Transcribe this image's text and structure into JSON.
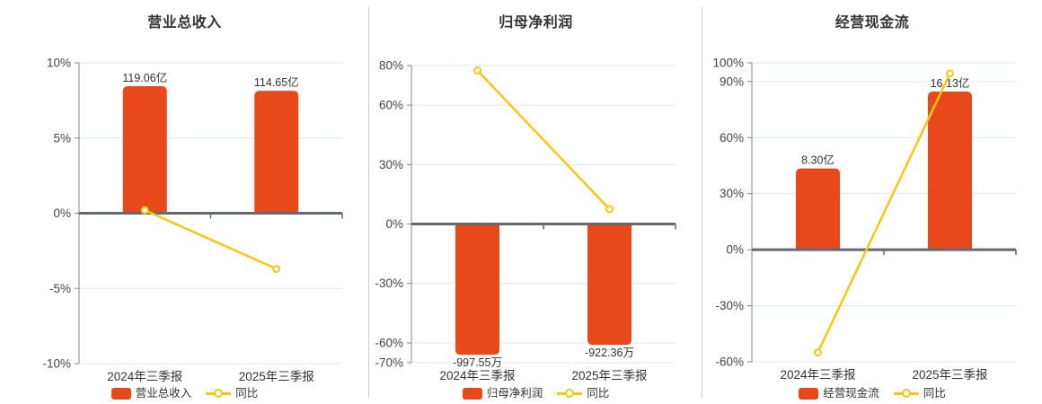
{
  "colors": {
    "bar": "#e8491a",
    "line": "#f5c813",
    "marker_fill": "#ffffff",
    "grid": "#e0e7f2",
    "zero_axis": "#65686f",
    "y_axis": "#7f838b",
    "title_text": "#333333",
    "tick_text": "#444444",
    "label_text": "#333333",
    "divider": "#cccccc",
    "background": "#ffffff"
  },
  "chart_data": [
    {
      "id": "revenue",
      "type": "bar",
      "title": "营业总收入",
      "categories": [
        "2024年三季报",
        "2025年三季报"
      ],
      "bar": {
        "name": "营业总收入",
        "values": [
          119.06,
          114.65
        ],
        "unit": "亿",
        "labels": [
          "119.06亿",
          "114.65亿"
        ],
        "axis_values": [
          8.45,
          8.14
        ]
      },
      "line": {
        "name": "同比",
        "unit": "%",
        "values": [
          0.2,
          -3.7
        ]
      },
      "ylim": [
        -10,
        10
      ],
      "yticks": [
        10,
        5,
        0,
        -5,
        -10
      ],
      "ytick_labels": [
        "10%",
        "5%",
        "0%",
        "-5%",
        "-10%"
      ],
      "grid": true,
      "legend_position": "bottom"
    },
    {
      "id": "net-profit",
      "type": "bar",
      "title": "归母净利润",
      "categories": [
        "2024年三季报",
        "2025年三季报"
      ],
      "bar": {
        "name": "归母净利润",
        "values": [
          -997.55,
          -922.36
        ],
        "unit": "万",
        "labels": [
          "-997.55万",
          "-922.36万"
        ],
        "axis_values": [
          -66,
          -61
        ]
      },
      "line": {
        "name": "同比",
        "unit": "%",
        "values": [
          77.5,
          7.5
        ]
      },
      "ylim": [
        -70,
        80
      ],
      "yticks": [
        80,
        60,
        30,
        0,
        -30,
        -60,
        -70
      ],
      "ytick_labels": [
        "80%",
        "60%",
        "30%",
        "0%",
        "-30%",
        "-60%",
        "-70%"
      ],
      "grid": true,
      "legend_position": "bottom"
    },
    {
      "id": "cash-flow",
      "type": "bar",
      "title": "经营现金流",
      "categories": [
        "2024年三季报",
        "2025年三季报"
      ],
      "bar": {
        "name": "经营现金流",
        "values": [
          8.3,
          16.13
        ],
        "unit": "亿",
        "labels": [
          "8.30亿",
          "16.13亿"
        ],
        "axis_values": [
          43.5,
          84.6
        ]
      },
      "line": {
        "name": "同比",
        "unit": "%",
        "values": [
          -55,
          94.3
        ]
      },
      "ylim": [
        -60,
        100
      ],
      "yticks": [
        100,
        90,
        60,
        30,
        0,
        -30,
        -60
      ],
      "ytick_labels": [
        "100%",
        "90%",
        "60%",
        "30%",
        "0%",
        "-30%",
        "-60%"
      ],
      "grid": true,
      "legend_position": "bottom"
    }
  ]
}
